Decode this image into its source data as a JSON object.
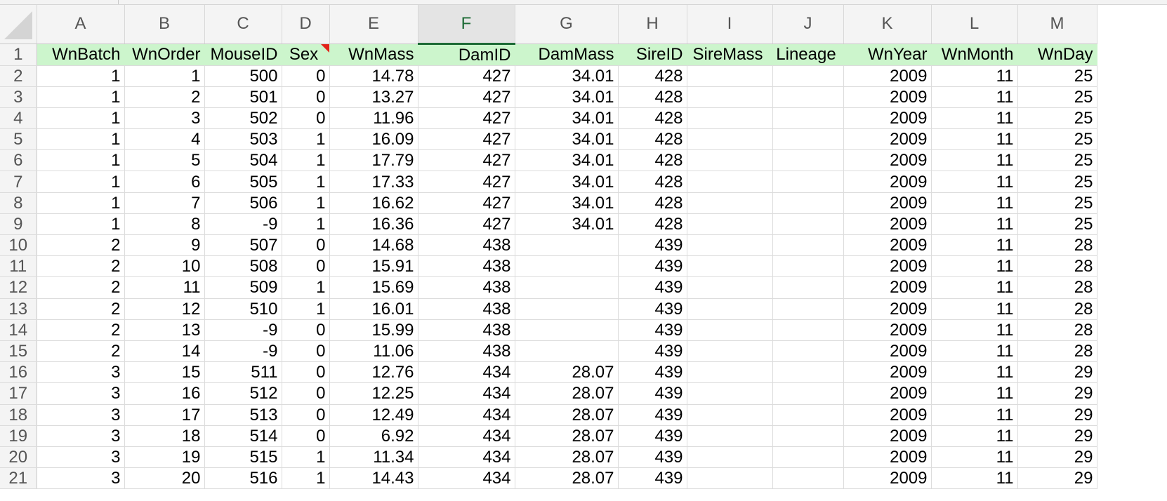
{
  "columns": [
    "A",
    "B",
    "C",
    "D",
    "E",
    "F",
    "G",
    "H",
    "I",
    "J",
    "K",
    "L",
    "M"
  ],
  "selected_column": "F",
  "header_row": {
    "row_number": "1",
    "cells": [
      "WnBatch",
      "WnOrder",
      "MouseID",
      "Sex",
      "WnMass",
      "DamID",
      "DamMass",
      "SireID",
      "SireMass",
      "Lineage",
      "WnYear",
      "WnMonth",
      "WnDay"
    ]
  },
  "rows": [
    {
      "n": "2",
      "cells": [
        "1",
        "1",
        "500",
        "0",
        "14.78",
        "427",
        "34.01",
        "428",
        "",
        "",
        "2009",
        "11",
        "25"
      ]
    },
    {
      "n": "3",
      "cells": [
        "1",
        "2",
        "501",
        "0",
        "13.27",
        "427",
        "34.01",
        "428",
        "",
        "",
        "2009",
        "11",
        "25"
      ]
    },
    {
      "n": "4",
      "cells": [
        "1",
        "3",
        "502",
        "0",
        "11.96",
        "427",
        "34.01",
        "428",
        "",
        "",
        "2009",
        "11",
        "25"
      ]
    },
    {
      "n": "5",
      "cells": [
        "1",
        "4",
        "503",
        "1",
        "16.09",
        "427",
        "34.01",
        "428",
        "",
        "",
        "2009",
        "11",
        "25"
      ]
    },
    {
      "n": "6",
      "cells": [
        "1",
        "5",
        "504",
        "1",
        "17.79",
        "427",
        "34.01",
        "428",
        "",
        "",
        "2009",
        "11",
        "25"
      ]
    },
    {
      "n": "7",
      "cells": [
        "1",
        "6",
        "505",
        "1",
        "17.33",
        "427",
        "34.01",
        "428",
        "",
        "",
        "2009",
        "11",
        "25"
      ]
    },
    {
      "n": "8",
      "cells": [
        "1",
        "7",
        "506",
        "1",
        "16.62",
        "427",
        "34.01",
        "428",
        "",
        "",
        "2009",
        "11",
        "25"
      ]
    },
    {
      "n": "9",
      "cells": [
        "1",
        "8",
        "-9",
        "1",
        "16.36",
        "427",
        "34.01",
        "428",
        "",
        "",
        "2009",
        "11",
        "25"
      ]
    },
    {
      "n": "10",
      "cells": [
        "2",
        "9",
        "507",
        "0",
        "14.68",
        "438",
        "",
        "439",
        "",
        "",
        "2009",
        "11",
        "28"
      ]
    },
    {
      "n": "11",
      "cells": [
        "2",
        "10",
        "508",
        "0",
        "15.91",
        "438",
        "",
        "439",
        "",
        "",
        "2009",
        "11",
        "28"
      ]
    },
    {
      "n": "12",
      "cells": [
        "2",
        "11",
        "509",
        "1",
        "15.69",
        "438",
        "",
        "439",
        "",
        "",
        "2009",
        "11",
        "28"
      ]
    },
    {
      "n": "13",
      "cells": [
        "2",
        "12",
        "510",
        "1",
        "16.01",
        "438",
        "",
        "439",
        "",
        "",
        "2009",
        "11",
        "28"
      ]
    },
    {
      "n": "14",
      "cells": [
        "2",
        "13",
        "-9",
        "0",
        "15.99",
        "438",
        "",
        "439",
        "",
        "",
        "2009",
        "11",
        "28"
      ]
    },
    {
      "n": "15",
      "cells": [
        "2",
        "14",
        "-9",
        "0",
        "11.06",
        "438",
        "",
        "439",
        "",
        "",
        "2009",
        "11",
        "28"
      ]
    },
    {
      "n": "16",
      "cells": [
        "3",
        "15",
        "511",
        "0",
        "12.76",
        "434",
        "28.07",
        "439",
        "",
        "",
        "2009",
        "11",
        "29"
      ]
    },
    {
      "n": "17",
      "cells": [
        "3",
        "16",
        "512",
        "0",
        "12.25",
        "434",
        "28.07",
        "439",
        "",
        "",
        "2009",
        "11",
        "29"
      ]
    },
    {
      "n": "18",
      "cells": [
        "3",
        "17",
        "513",
        "0",
        "12.49",
        "434",
        "28.07",
        "439",
        "",
        "",
        "2009",
        "11",
        "29"
      ]
    },
    {
      "n": "19",
      "cells": [
        "3",
        "18",
        "514",
        "0",
        "6.92",
        "434",
        "28.07",
        "439",
        "",
        "",
        "2009",
        "11",
        "29"
      ]
    },
    {
      "n": "20",
      "cells": [
        "3",
        "19",
        "515",
        "1",
        "11.34",
        "434",
        "28.07",
        "439",
        "",
        "",
        "2009",
        "11",
        "29"
      ]
    },
    {
      "n": "21",
      "cells": [
        "3",
        "20",
        "516",
        "1",
        "14.43",
        "434",
        "28.07",
        "439",
        "",
        "",
        "2009",
        "11",
        "29"
      ]
    }
  ],
  "colors": {
    "header_fill": "#ccf5cc",
    "selected_column_accent": "#1e6b36",
    "comment_flag": "#e2231a"
  }
}
